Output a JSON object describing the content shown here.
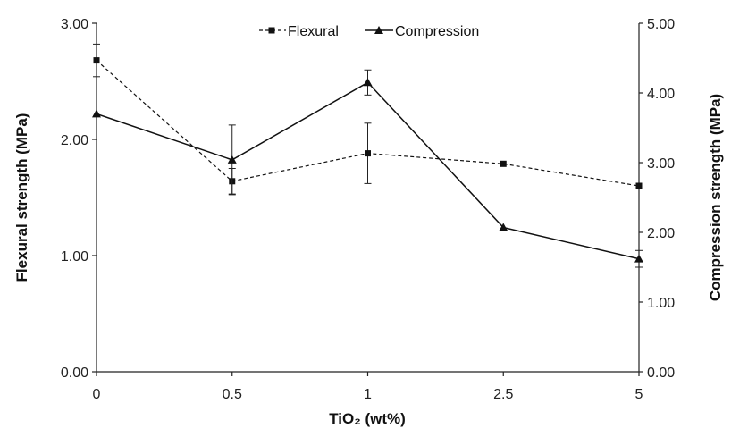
{
  "chart_data": {
    "type": "line",
    "categories": [
      "0",
      "0.5",
      "1",
      "2.5",
      "5"
    ],
    "xlabel": "TiO₂ (wt%)",
    "ylabel_left": "Flexural strength (MPa)",
    "ylabel_right": "Compression strength (MPa)",
    "ylim_left": [
      0,
      3
    ],
    "ylim_right": [
      0,
      5
    ],
    "yticks_left": [
      "0.00",
      "1.00",
      "2.00",
      "3.00"
    ],
    "yticks_right": [
      "0.00",
      "1.00",
      "2.00",
      "3.00",
      "4.00",
      "5.00"
    ],
    "grid": false,
    "legend_position": "top-center",
    "series": [
      {
        "name": "Flexural",
        "axis": "left",
        "marker": "square",
        "line_style": "dashed",
        "values": [
          2.68,
          1.64,
          1.88,
          1.79,
          1.6
        ],
        "error": [
          0.14,
          0.11,
          0.26,
          0,
          0
        ]
      },
      {
        "name": "Compression",
        "axis": "right",
        "marker": "triangle",
        "line_style": "solid",
        "values": [
          3.7,
          3.04,
          4.15,
          2.07,
          1.62
        ],
        "error": [
          0,
          0.5,
          0.18,
          0,
          0.12
        ]
      }
    ]
  }
}
